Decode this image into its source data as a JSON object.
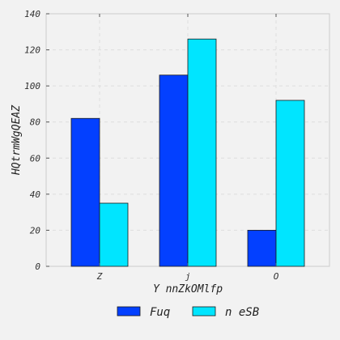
{
  "chart_data": {
    "type": "bar",
    "title": "",
    "xlabel": "Y nnZkOMlfp",
    "ylabel": "HQtrmWgQEAZ",
    "categories": [
      "Z",
      "j",
      "O"
    ],
    "ylim": [
      0,
      140
    ],
    "yticks": [
      0,
      20,
      40,
      60,
      80,
      100,
      120,
      140
    ],
    "grid": true,
    "legend_position": "bottom",
    "series": [
      {
        "name": "Fuq",
        "values": [
          82,
          106,
          20
        ],
        "color": "#0340ff"
      },
      {
        "name": "n eSB",
        "values": [
          35,
          126,
          92
        ],
        "color": "#00e5ff"
      }
    ]
  }
}
